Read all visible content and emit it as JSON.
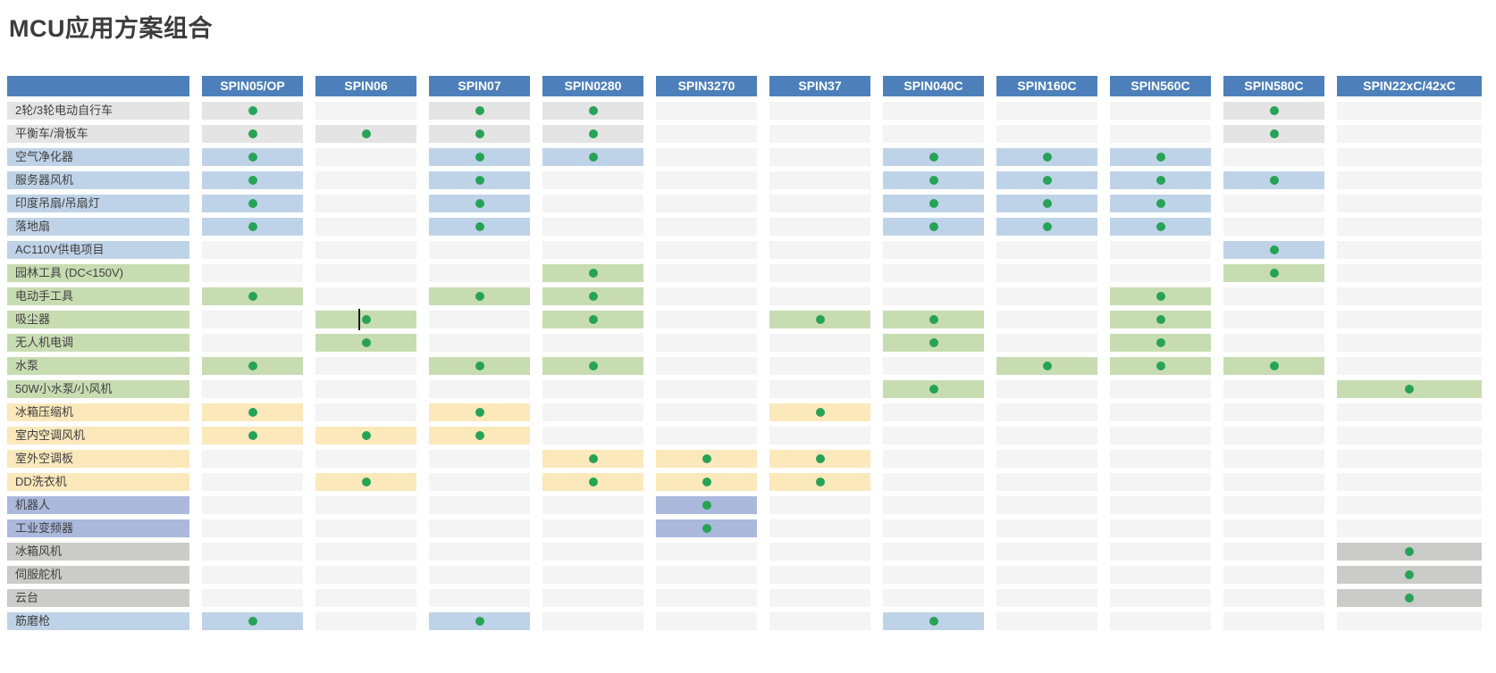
{
  "chart_data": {
    "type": "table",
    "title": "MCU应用方案组合",
    "columns": [
      "SPIN05/OP",
      "SPIN06",
      "SPIN07",
      "SPIN0280",
      "SPIN3270",
      "SPIN37",
      "SPIN040C",
      "SPIN160C",
      "SPIN560C",
      "SPIN580C",
      "SPIN22xC/42xC"
    ],
    "rows": [
      {
        "label": "2轮/3轮电动自行车",
        "category": "gray_light",
        "dots": [
          0,
          2,
          3,
          9
        ]
      },
      {
        "label": "平衡车/滑板车",
        "category": "gray_light",
        "dots": [
          0,
          1,
          2,
          3,
          9
        ]
      },
      {
        "label": "空气净化器",
        "category": "blue",
        "dots": [
          0,
          2,
          3,
          6,
          7,
          8
        ]
      },
      {
        "label": "服务器风机",
        "category": "blue",
        "dots": [
          0,
          2,
          6,
          7,
          8,
          9
        ]
      },
      {
        "label": "印度吊扇/吊扇灯",
        "category": "blue",
        "dots": [
          0,
          2,
          6,
          7,
          8
        ]
      },
      {
        "label": "落地扇",
        "category": "blue",
        "dots": [
          0,
          2,
          6,
          7,
          8
        ]
      },
      {
        "label": "AC110V供电项目",
        "category": "blue",
        "dots": [
          9
        ]
      },
      {
        "label": "园林工具 (DC<150V)",
        "category": "green",
        "dots": [
          3,
          9
        ]
      },
      {
        "label": "电动手工具",
        "category": "green",
        "dots": [
          0,
          2,
          3,
          8
        ]
      },
      {
        "label": "吸尘器",
        "category": "green",
        "dots": [
          1,
          3,
          5,
          6,
          8
        ]
      },
      {
        "label": "无人机电调",
        "category": "green",
        "dots": [
          1,
          6,
          8
        ]
      },
      {
        "label": "水泵",
        "category": "green",
        "dots": [
          0,
          2,
          3,
          7,
          8,
          9
        ]
      },
      {
        "label": "50W小水泵/小风机",
        "category": "green",
        "dots": [
          6,
          10
        ]
      },
      {
        "label": "冰箱压缩机",
        "category": "yellow",
        "dots": [
          0,
          2,
          5
        ]
      },
      {
        "label": "室内空调风机",
        "category": "yellow",
        "dots": [
          0,
          1,
          2
        ]
      },
      {
        "label": "室外空调板",
        "category": "yellow",
        "dots": [
          3,
          4,
          5
        ]
      },
      {
        "label": "DD洗衣机",
        "category": "yellow",
        "dots": [
          1,
          3,
          4,
          5
        ]
      },
      {
        "label": "机器人",
        "category": "periwinkle",
        "dots": [
          4
        ]
      },
      {
        "label": "工业变频器",
        "category": "periwinkle",
        "dots": [
          4
        ]
      },
      {
        "label": "冰箱风机",
        "category": "gray",
        "dots": [
          10
        ]
      },
      {
        "label": "伺服舵机",
        "category": "gray",
        "dots": [
          10
        ]
      },
      {
        "label": "云台",
        "category": "gray",
        "dots": [
          10
        ]
      },
      {
        "label": "筋磨枪",
        "category": "blue",
        "dots": [
          0,
          2,
          6
        ]
      }
    ],
    "colors": {
      "header_bg": "#4d80ba",
      "header_text": "#ffffff",
      "title_text": "#3c3c3c",
      "gray_light": "#e4e4e4",
      "blue": "#bfd3e8",
      "green": "#c8dcb2",
      "yellow": "#fbe8bb",
      "periwinkle": "#aab9dc",
      "gray": "#cbcbc9",
      "plain_cell": "#f4f4f5",
      "dot": "#27a357"
    },
    "cursor_artifact": {
      "row_index": 9,
      "col_index": 1
    },
    "layout_hints": {
      "legend": "none",
      "grid": "off",
      "dot_meaning": "green dot = MCU applicable to application"
    }
  }
}
